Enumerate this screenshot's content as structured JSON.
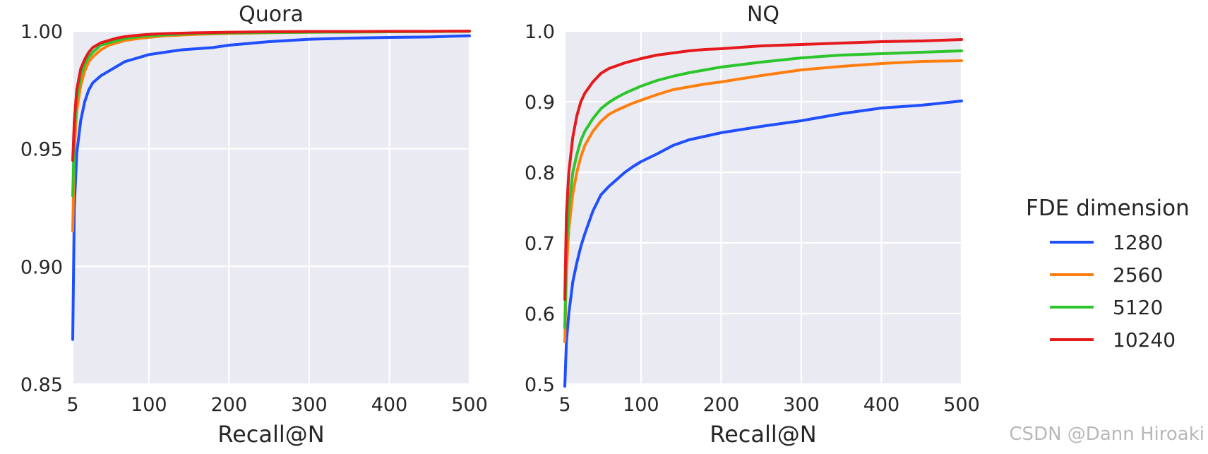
{
  "chart_data": [
    {
      "type": "line",
      "title": "Quora",
      "xlabel": "Recall@N",
      "ylabel": "",
      "xlim": [
        5,
        500
      ],
      "ylim": [
        0.85,
        1.0
      ],
      "xticks": [
        5,
        100,
        200,
        300,
        400,
        500
      ],
      "xtick_labels": [
        "5",
        "100",
        "200",
        "300",
        "400",
        "500"
      ],
      "yticks": [
        0.85,
        0.9,
        0.95,
        1.0
      ],
      "ytick_labels": [
        "0.85",
        "0.90",
        "0.95",
        "1.00"
      ],
      "grid": true,
      "x": [
        5,
        7,
        10,
        15,
        20,
        25,
        30,
        40,
        50,
        60,
        70,
        80,
        90,
        100,
        120,
        140,
        160,
        180,
        200,
        250,
        300,
        350,
        400,
        450,
        500
      ],
      "series": [
        {
          "name": "1280",
          "color": "#1f4fff",
          "values": [
            0.869,
            0.925,
            0.948,
            0.962,
            0.97,
            0.975,
            0.978,
            0.981,
            0.983,
            0.985,
            0.987,
            0.988,
            0.989,
            0.99,
            0.991,
            0.992,
            0.9925,
            0.993,
            0.994,
            0.9955,
            0.9965,
            0.997,
            0.9973,
            0.9975,
            0.998
          ]
        },
        {
          "name": "2560",
          "color": "#ff7f0e",
          "values": [
            0.915,
            0.95,
            0.966,
            0.977,
            0.983,
            0.987,
            0.989,
            0.992,
            0.994,
            0.995,
            0.996,
            0.9965,
            0.997,
            0.9973,
            0.998,
            0.9983,
            0.9986,
            0.9988,
            0.999,
            0.9993,
            0.9995,
            0.9996,
            0.9997,
            0.9998,
            0.9999
          ]
        },
        {
          "name": "5120",
          "color": "#2cc52c",
          "values": [
            0.93,
            0.957,
            0.971,
            0.981,
            0.986,
            0.989,
            0.991,
            0.994,
            0.995,
            0.996,
            0.9968,
            0.9973,
            0.9977,
            0.998,
            0.9984,
            0.9987,
            0.999,
            0.9991,
            0.9992,
            0.9994,
            0.9995,
            0.9996,
            0.9997,
            0.9998,
            0.9999
          ]
        },
        {
          "name": "10240",
          "color": "#e41a1c",
          "values": [
            0.945,
            0.962,
            0.975,
            0.984,
            0.988,
            0.991,
            0.993,
            0.995,
            0.996,
            0.997,
            0.9976,
            0.998,
            0.9983,
            0.9986,
            0.9989,
            0.9991,
            0.9993,
            0.9994,
            0.9995,
            0.9997,
            0.9998,
            0.9998,
            0.9999,
            0.9999,
            1.0
          ]
        }
      ]
    },
    {
      "type": "line",
      "title": "NQ",
      "xlabel": "Recall@N",
      "ylabel": "",
      "xlim": [
        5,
        500
      ],
      "ylim": [
        0.5,
        1.0
      ],
      "xticks": [
        5,
        100,
        200,
        300,
        400,
        500
      ],
      "xtick_labels": [
        "5",
        "100",
        "200",
        "300",
        "400",
        "500"
      ],
      "yticks": [
        0.5,
        0.6,
        0.7,
        0.8,
        0.9,
        1.0
      ],
      "ytick_labels": [
        "0.5",
        "0.6",
        "0.7",
        "0.8",
        "0.9",
        "1.0"
      ],
      "grid": true,
      "x": [
        5,
        7,
        10,
        15,
        20,
        25,
        30,
        40,
        50,
        60,
        70,
        80,
        90,
        100,
        120,
        140,
        160,
        180,
        200,
        250,
        300,
        350,
        400,
        450,
        500
      ],
      "series": [
        {
          "name": "1280",
          "color": "#1f4fff",
          "values": [
            0.497,
            0.56,
            0.6,
            0.645,
            0.672,
            0.695,
            0.713,
            0.745,
            0.768,
            0.78,
            0.79,
            0.8,
            0.808,
            0.815,
            0.826,
            0.838,
            0.846,
            0.851,
            0.856,
            0.865,
            0.873,
            0.883,
            0.891,
            0.895,
            0.901
          ]
        },
        {
          "name": "2560",
          "color": "#ff7f0e",
          "values": [
            0.56,
            0.66,
            0.72,
            0.77,
            0.8,
            0.822,
            0.838,
            0.858,
            0.872,
            0.882,
            0.888,
            0.893,
            0.898,
            0.902,
            0.91,
            0.917,
            0.921,
            0.925,
            0.928,
            0.937,
            0.945,
            0.95,
            0.954,
            0.957,
            0.958
          ]
        },
        {
          "name": "5120",
          "color": "#2cc52c",
          "values": [
            0.58,
            0.69,
            0.75,
            0.8,
            0.825,
            0.845,
            0.858,
            0.876,
            0.89,
            0.899,
            0.906,
            0.912,
            0.917,
            0.922,
            0.93,
            0.936,
            0.941,
            0.945,
            0.949,
            0.956,
            0.962,
            0.966,
            0.968,
            0.97,
            0.972
          ]
        },
        {
          "name": "10240",
          "color": "#e41a1c",
          "values": [
            0.62,
            0.74,
            0.8,
            0.85,
            0.88,
            0.9,
            0.912,
            0.928,
            0.94,
            0.947,
            0.951,
            0.955,
            0.958,
            0.961,
            0.966,
            0.969,
            0.972,
            0.974,
            0.975,
            0.979,
            0.981,
            0.983,
            0.985,
            0.986,
            0.988
          ]
        }
      ]
    }
  ],
  "legend": {
    "title": "FDE dimension",
    "entries": [
      {
        "label": "1280",
        "color": "#1f4fff"
      },
      {
        "label": "2560",
        "color": "#ff7f0e"
      },
      {
        "label": "5120",
        "color": "#2cc52c"
      },
      {
        "label": "10240",
        "color": "#e41a1c"
      }
    ]
  },
  "watermark": "CSDN @Dann Hiroaki"
}
